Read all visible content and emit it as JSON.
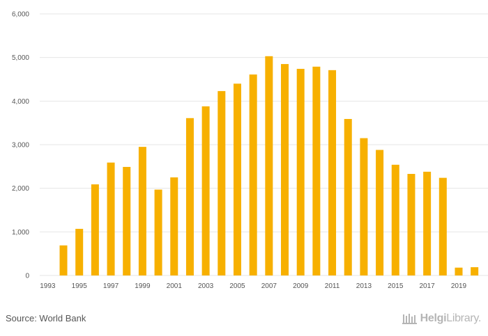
{
  "chart_data": {
    "type": "bar",
    "categories": [
      "1993",
      "1994",
      "1995",
      "1996",
      "1997",
      "1998",
      "1999",
      "2000",
      "2001",
      "2002",
      "2003",
      "2004",
      "2005",
      "2006",
      "2007",
      "2008",
      "2009",
      "2010",
      "2011",
      "2012",
      "2013",
      "2014",
      "2015",
      "2016",
      "2017",
      "2018",
      "2019",
      "2020"
    ],
    "values": [
      null,
      690,
      1070,
      2090,
      2590,
      2490,
      2950,
      1970,
      2250,
      3610,
      3880,
      4230,
      4400,
      4610,
      5030,
      4850,
      4740,
      4790,
      4710,
      3590,
      3150,
      2880,
      2540,
      2330,
      2380,
      2240,
      180,
      190
    ],
    "x_tick_labels": [
      "1993",
      "1995",
      "1997",
      "1999",
      "2001",
      "2003",
      "2005",
      "2007",
      "2009",
      "2011",
      "2013",
      "2015",
      "2017",
      "2019"
    ],
    "y_tick_labels": [
      "0",
      "1,000",
      "2,000",
      "3,000",
      "4,000",
      "5,000",
      "6,000"
    ],
    "ylim": [
      0,
      6000
    ],
    "grid": true,
    "legend": "none",
    "title": "",
    "xlabel": "",
    "ylabel": "",
    "bar_color": "#f7b000",
    "grid_color": "#e6e6e6"
  },
  "footer": {
    "source": "Source: World Bank",
    "watermark_icon": "library-columns-icon",
    "watermark_brand": "Helgi",
    "watermark_rest": "Library."
  }
}
